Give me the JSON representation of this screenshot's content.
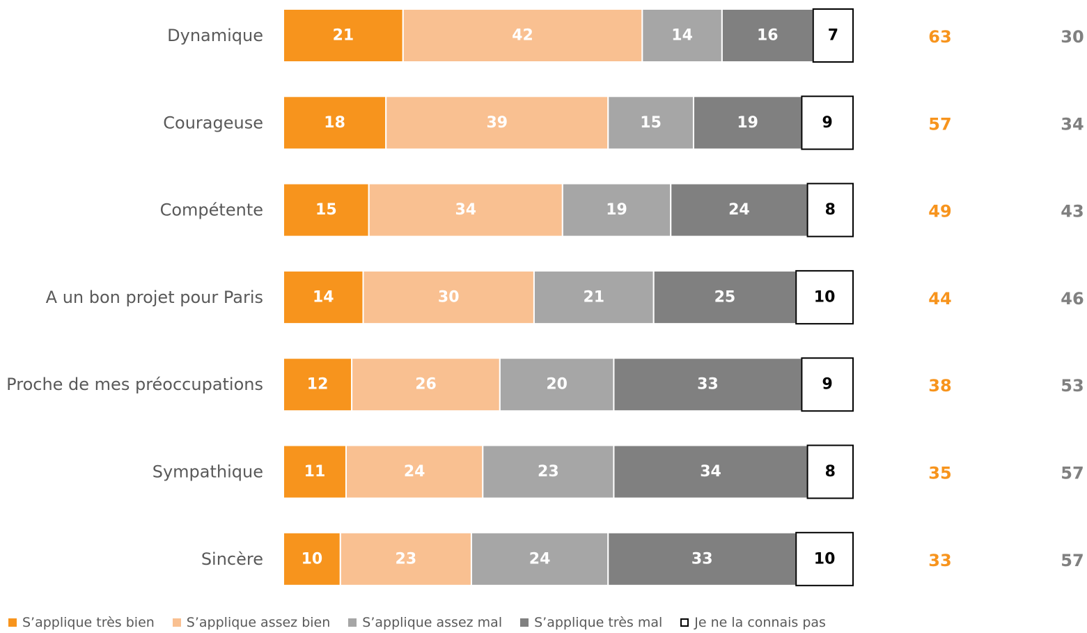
{
  "chart_data": {
    "type": "bar",
    "orientation": "horizontal",
    "stacked": true,
    "categories": [
      "Dynamique",
      "Courageuse",
      "Compétente",
      "A un bon projet pour Paris",
      "Proche de mes préoccupations",
      "Sympathique",
      "Sincère"
    ],
    "series": [
      {
        "name": "S’applique très bien",
        "color": "#f7941d",
        "label_color": "#ffffff",
        "values": [
          21,
          18,
          15,
          14,
          12,
          11,
          10
        ]
      },
      {
        "name": "S’applique assez bien",
        "color": "#f9c091",
        "label_color": "#ffffff",
        "values": [
          42,
          39,
          34,
          30,
          26,
          24,
          23
        ]
      },
      {
        "name": "S’applique assez mal",
        "color": "#a6a6a6",
        "label_color": "#ffffff",
        "values": [
          14,
          15,
          19,
          21,
          20,
          23,
          24
        ]
      },
      {
        "name": "S’applique très mal",
        "color": "#808080",
        "label_color": "#ffffff",
        "values": [
          16,
          19,
          24,
          25,
          33,
          34,
          33
        ]
      },
      {
        "name": "Je ne la connais pas",
        "color": "#ffffff",
        "label_color": "#000000",
        "outlined": true,
        "values": [
          7,
          9,
          8,
          10,
          9,
          8,
          10
        ]
      }
    ],
    "totals": [
      {
        "color": "#f7941d",
        "values": [
          63,
          57,
          49,
          44,
          38,
          35,
          33
        ]
      },
      {
        "color": "#808080",
        "values": [
          30,
          34,
          43,
          46,
          53,
          57,
          57
        ]
      }
    ],
    "grid": false,
    "legend_position": "bottom"
  }
}
